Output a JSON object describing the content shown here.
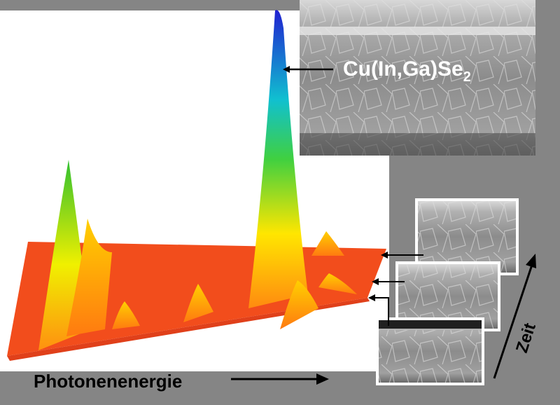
{
  "labels": {
    "material": {
      "text": "Cu(In,Ga)Se",
      "subscript": "2"
    },
    "energy_axis": "Photonenenergie",
    "time_axis": "Zeit"
  }
}
